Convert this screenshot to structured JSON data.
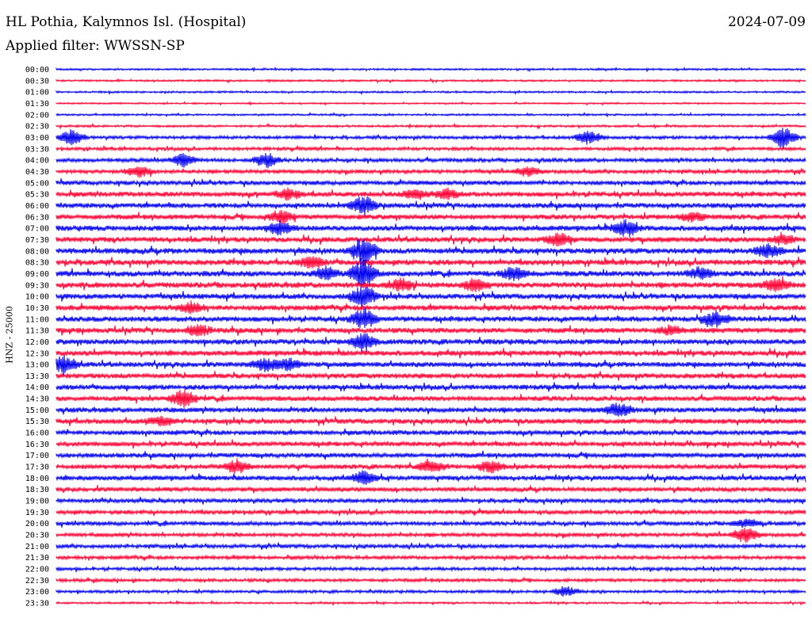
{
  "header": {
    "station": "HL Pothia, Kalymnos Isl. (Hospital)",
    "date": "2024-07-09",
    "filter": "Applied filter: WWSSN-SP"
  },
  "chart_data": {
    "type": "line",
    "title": "HL Pothia, Kalymnos Isl. (Hospital)",
    "date": "2024-07-09",
    "subtitle": "Applied filter: WWSSN-SP",
    "ylabel": "HNZ - 25000",
    "xlabel": "",
    "series_colors": [
      "#0000ee",
      "#ff0033"
    ],
    "rows": [
      {
        "time": "00:00",
        "color": "#0000ee",
        "amp": 0.3
      },
      {
        "time": "00:30",
        "color": "#ff0033",
        "amp": 0.3
      },
      {
        "time": "01:00",
        "color": "#0000ee",
        "amp": 0.3
      },
      {
        "time": "01:30",
        "color": "#ff0033",
        "amp": 0.25
      },
      {
        "time": "02:00",
        "color": "#0000ee",
        "amp": 0.3
      },
      {
        "time": "02:30",
        "color": "#ff0033",
        "amp": 0.35
      },
      {
        "time": "03:00",
        "color": "#0000ee",
        "amp": 0.5
      },
      {
        "time": "03:30",
        "color": "#ff0033",
        "amp": 0.5
      },
      {
        "time": "04:00",
        "color": "#0000ee",
        "amp": 0.6
      },
      {
        "time": "04:30",
        "color": "#ff0033",
        "amp": 0.6
      },
      {
        "time": "05:00",
        "color": "#0000ee",
        "amp": 0.7
      },
      {
        "time": "05:30",
        "color": "#ff0033",
        "amp": 0.8
      },
      {
        "time": "06:00",
        "color": "#0000ee",
        "amp": 0.8
      },
      {
        "time": "06:30",
        "color": "#ff0033",
        "amp": 0.8
      },
      {
        "time": "07:00",
        "color": "#0000ee",
        "amp": 0.85
      },
      {
        "time": "07:30",
        "color": "#ff0033",
        "amp": 0.85
      },
      {
        "time": "08:00",
        "color": "#0000ee",
        "amp": 0.9
      },
      {
        "time": "08:30",
        "color": "#ff0033",
        "amp": 0.9
      },
      {
        "time": "09:00",
        "color": "#0000ee",
        "amp": 0.9
      },
      {
        "time": "09:30",
        "color": "#ff0033",
        "amp": 0.9
      },
      {
        "time": "10:00",
        "color": "#0000ee",
        "amp": 0.85
      },
      {
        "time": "10:30",
        "color": "#ff0033",
        "amp": 0.85
      },
      {
        "time": "11:00",
        "color": "#0000ee",
        "amp": 0.85
      },
      {
        "time": "11:30",
        "color": "#ff0033",
        "amp": 0.85
      },
      {
        "time": "12:00",
        "color": "#0000ee",
        "amp": 0.85
      },
      {
        "time": "12:30",
        "color": "#ff0033",
        "amp": 0.85
      },
      {
        "time": "13:00",
        "color": "#0000ee",
        "amp": 0.8
      },
      {
        "time": "13:30",
        "color": "#ff0033",
        "amp": 0.8
      },
      {
        "time": "14:00",
        "color": "#0000ee",
        "amp": 0.8
      },
      {
        "time": "14:30",
        "color": "#ff0033",
        "amp": 0.8
      },
      {
        "time": "15:00",
        "color": "#0000ee",
        "amp": 0.8
      },
      {
        "time": "15:30",
        "color": "#ff0033",
        "amp": 0.8
      },
      {
        "time": "16:00",
        "color": "#0000ee",
        "amp": 0.75
      },
      {
        "time": "16:30",
        "color": "#ff0033",
        "amp": 0.75
      },
      {
        "time": "17:00",
        "color": "#0000ee",
        "amp": 0.75
      },
      {
        "time": "17:30",
        "color": "#ff0033",
        "amp": 0.75
      },
      {
        "time": "18:00",
        "color": "#0000ee",
        "amp": 0.75
      },
      {
        "time": "18:30",
        "color": "#ff0033",
        "amp": 0.7
      },
      {
        "time": "19:00",
        "color": "#0000ee",
        "amp": 0.65
      },
      {
        "time": "19:30",
        "color": "#ff0033",
        "amp": 0.65
      },
      {
        "time": "20:00",
        "color": "#0000ee",
        "amp": 0.65
      },
      {
        "time": "20:30",
        "color": "#ff0033",
        "amp": 0.6
      },
      {
        "time": "21:00",
        "color": "#0000ee",
        "amp": 0.6
      },
      {
        "time": "21:30",
        "color": "#ff0033",
        "amp": 0.55
      },
      {
        "time": "22:00",
        "color": "#0000ee",
        "amp": 0.5
      },
      {
        "time": "22:30",
        "color": "#ff0033",
        "amp": 0.5
      },
      {
        "time": "23:00",
        "color": "#0000ee",
        "amp": 0.45
      },
      {
        "time": "23:30",
        "color": "#ff0033",
        "amp": 0.3
      }
    ],
    "events": [
      {
        "time": "03:00",
        "at": 0.02,
        "strength": 2.5
      },
      {
        "time": "03:00",
        "at": 0.71,
        "strength": 2.2
      },
      {
        "time": "03:00",
        "at": 0.97,
        "strength": 3.5
      },
      {
        "time": "04:00",
        "at": 0.17,
        "strength": 2.0
      },
      {
        "time": "04:00",
        "at": 0.28,
        "strength": 2.5
      },
      {
        "time": "04:30",
        "at": 0.11,
        "strength": 2.0
      },
      {
        "time": "04:30",
        "at": 0.63,
        "strength": 1.5
      },
      {
        "time": "05:30",
        "at": 0.31,
        "strength": 1.8
      },
      {
        "time": "05:30",
        "at": 0.48,
        "strength": 1.5
      },
      {
        "time": "05:30",
        "at": 0.52,
        "strength": 1.6
      },
      {
        "time": "06:00",
        "at": 0.41,
        "strength": 3.0
      },
      {
        "time": "06:30",
        "at": 0.3,
        "strength": 2.0
      },
      {
        "time": "06:30",
        "at": 0.85,
        "strength": 1.6
      },
      {
        "time": "07:00",
        "at": 0.3,
        "strength": 2.2
      },
      {
        "time": "07:00",
        "at": 0.76,
        "strength": 2.6
      },
      {
        "time": "07:30",
        "at": 0.67,
        "strength": 2.0
      },
      {
        "time": "07:30",
        "at": 0.97,
        "strength": 1.5
      },
      {
        "time": "08:00",
        "at": 0.41,
        "strength": 4.5
      },
      {
        "time": "08:00",
        "at": 0.95,
        "strength": 2.2
      },
      {
        "time": "08:30",
        "at": 0.34,
        "strength": 1.8
      },
      {
        "time": "09:00",
        "at": 0.41,
        "strength": 5.0
      },
      {
        "time": "09:00",
        "at": 0.36,
        "strength": 2.0
      },
      {
        "time": "09:00",
        "at": 0.61,
        "strength": 2.2
      },
      {
        "time": "09:00",
        "at": 0.86,
        "strength": 1.8
      },
      {
        "time": "09:30",
        "at": 0.46,
        "strength": 2.0
      },
      {
        "time": "09:30",
        "at": 0.56,
        "strength": 2.0
      },
      {
        "time": "09:30",
        "at": 0.96,
        "strength": 2.0
      },
      {
        "time": "10:00",
        "at": 0.41,
        "strength": 4.0
      },
      {
        "time": "10:30",
        "at": 0.18,
        "strength": 1.8
      },
      {
        "time": "11:00",
        "at": 0.88,
        "strength": 2.6
      },
      {
        "time": "11:00",
        "at": 0.41,
        "strength": 3.5
      },
      {
        "time": "11:30",
        "at": 0.19,
        "strength": 1.8
      },
      {
        "time": "11:30",
        "at": 0.82,
        "strength": 1.5
      },
      {
        "time": "12:00",
        "at": 0.41,
        "strength": 3.0
      },
      {
        "time": "13:00",
        "at": 0.01,
        "strength": 3.0
      },
      {
        "time": "13:00",
        "at": 0.28,
        "strength": 2.2
      },
      {
        "time": "13:00",
        "at": 0.31,
        "strength": 1.8
      },
      {
        "time": "14:30",
        "at": 0.17,
        "strength": 2.8
      },
      {
        "time": "15:00",
        "at": 0.75,
        "strength": 2.2
      },
      {
        "time": "15:30",
        "at": 0.14,
        "strength": 1.6
      },
      {
        "time": "17:30",
        "at": 0.24,
        "strength": 2.2
      },
      {
        "time": "17:30",
        "at": 0.5,
        "strength": 1.8
      },
      {
        "time": "17:30",
        "at": 0.58,
        "strength": 1.8
      },
      {
        "time": "18:00",
        "at": 0.41,
        "strength": 2.2
      },
      {
        "time": "20:00",
        "at": 0.92,
        "strength": 1.5
      },
      {
        "time": "20:30",
        "at": 0.92,
        "strength": 2.5
      },
      {
        "time": "23:00",
        "at": 0.68,
        "strength": 1.8
      }
    ]
  }
}
